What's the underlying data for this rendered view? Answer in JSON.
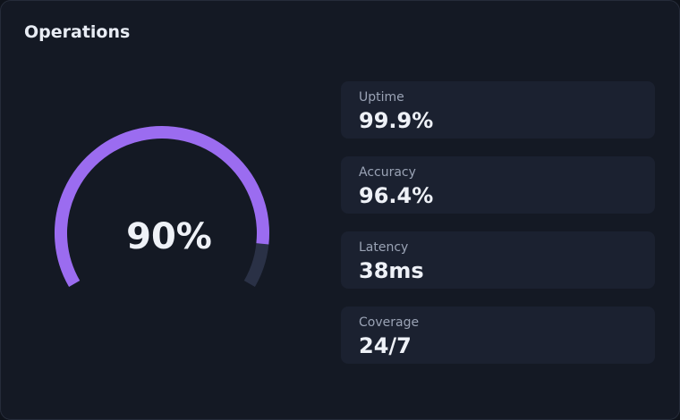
{
  "title": "Operations",
  "gauge": {
    "type": "gauge",
    "value": 90,
    "value_label": "90%",
    "range": [
      0,
      100
    ],
    "color": "#9b6cf0",
    "track_color": "#2a3146"
  },
  "metrics": [
    {
      "label": "Uptime",
      "value": "99.9%"
    },
    {
      "label": "Accuracy",
      "value": "96.4%"
    },
    {
      "label": "Latency",
      "value": "38ms"
    },
    {
      "label": "Coverage",
      "value": "24/7"
    }
  ]
}
